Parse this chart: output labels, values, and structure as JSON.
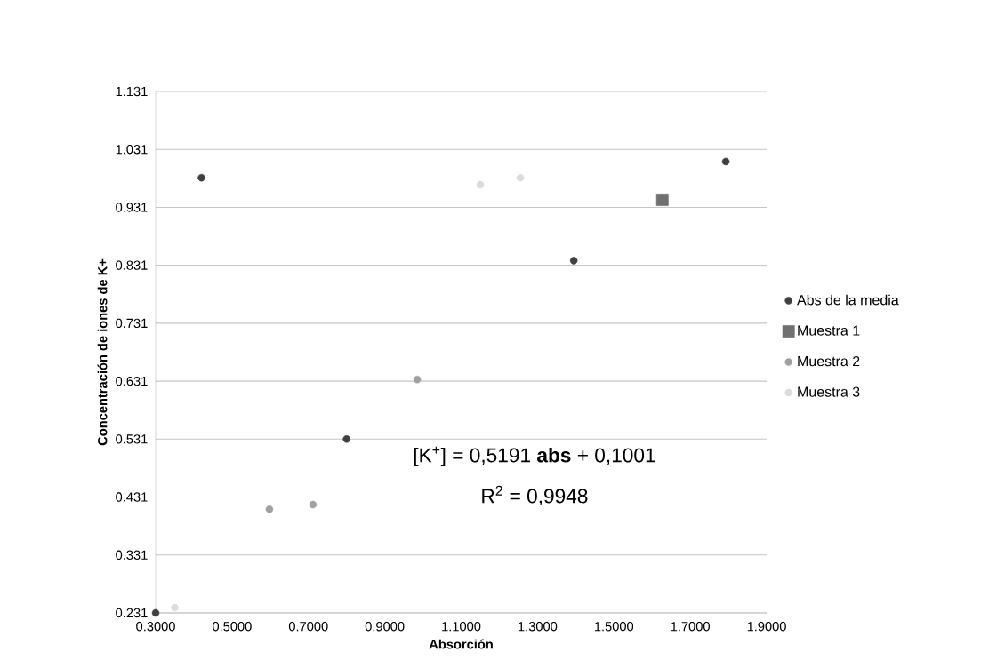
{
  "chart_data": {
    "type": "scatter",
    "xlabel": "Absorción",
    "ylabel": "Concentración de iones de K+",
    "xlim": [
      0.3,
      1.9
    ],
    "ylim": [
      0.231,
      1.131
    ],
    "xticks": [
      {
        "value": 0.3,
        "label": "0.3000"
      },
      {
        "value": 0.5,
        "label": "0.5000"
      },
      {
        "value": 0.7,
        "label": "0.7000"
      },
      {
        "value": 0.9,
        "label": "0.9000"
      },
      {
        "value": 1.1,
        "label": "1.1000"
      },
      {
        "value": 1.3,
        "label": "1.3000"
      },
      {
        "value": 1.5,
        "label": "1.5000"
      },
      {
        "value": 1.7,
        "label": "1.7000"
      },
      {
        "value": 1.9,
        "label": "1.9000"
      }
    ],
    "yticks": [
      0.231,
      0.331,
      0.431,
      0.531,
      0.631,
      0.731,
      0.831,
      0.931,
      1.031,
      1.131
    ],
    "grid": "y",
    "legend": "right",
    "annotations": [
      "[K$^{+}$] = 0,5191 **abs** + 0,1001",
      "R$^{2}$ = 0,9948"
    ],
    "series": [
      {
        "name": "Abs de la media",
        "color": "#404040",
        "marker": "circle",
        "x": [
          0.3,
          0.42,
          0.8,
          1.395,
          1.793
        ],
        "values": [
          0.231,
          0.982,
          0.531,
          0.839,
          1.01
        ]
      },
      {
        "name": "Muestra 1",
        "color": "#707070",
        "marker": "square",
        "x": [
          1.627
        ],
        "values": [
          0.944
        ]
      },
      {
        "name": "Muestra 2",
        "color": "#a0a0a0",
        "marker": "circle",
        "x": [
          0.598,
          0.712,
          0.985
        ],
        "values": [
          0.41,
          0.418,
          0.634
        ]
      },
      {
        "name": "Muestra 3",
        "color": "#dcdcdc",
        "marker": "circle",
        "x": [
          0.35,
          1.15,
          1.255
        ],
        "values": [
          0.24,
          0.97,
          0.982
        ]
      }
    ]
  }
}
